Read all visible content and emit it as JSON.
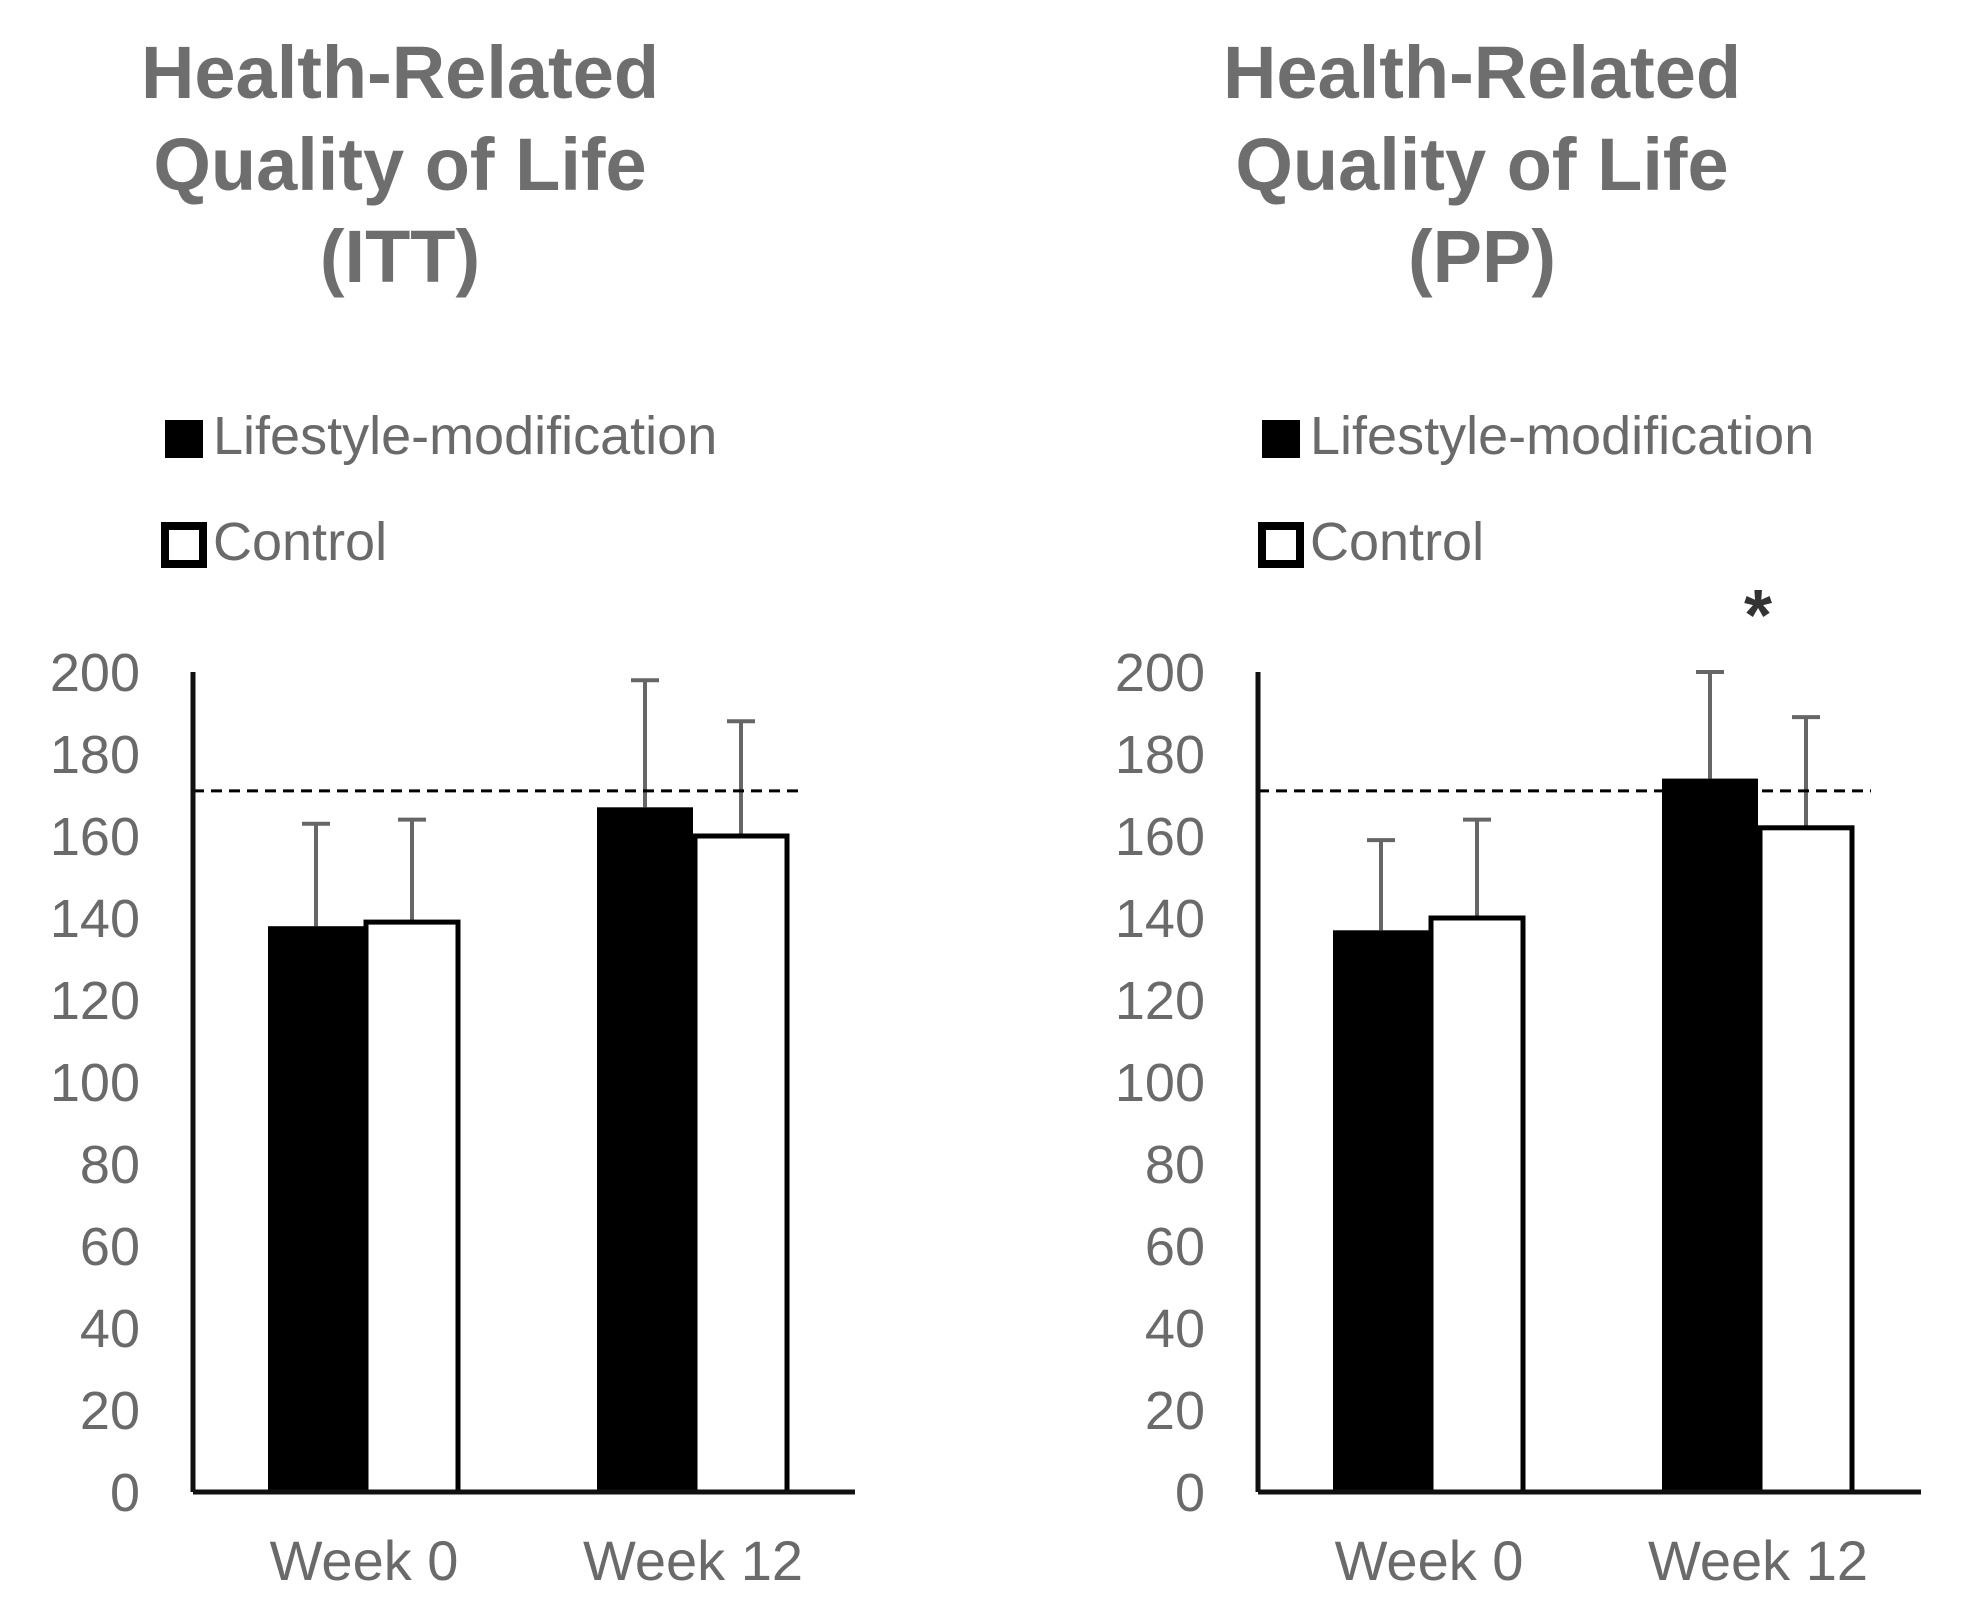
{
  "chart_data": [
    {
      "type": "bar",
      "title_lines": [
        "Health-Related",
        "Quality of Life",
        "(ITT)"
      ],
      "categories": [
        "Week 0",
        "Week 12"
      ],
      "series": [
        {
          "name": "Lifestyle-modification",
          "values": [
            138,
            167
          ],
          "errors": [
            25,
            31
          ]
        },
        {
          "name": "Control",
          "values": [
            139,
            160
          ],
          "errors": [
            25,
            28
          ]
        }
      ],
      "reference_line": 171,
      "ylim": [
        0,
        200
      ],
      "yticks": [
        "0",
        "20",
        "40",
        "60",
        "80",
        "100",
        "120",
        "140",
        "160",
        "180",
        "200"
      ],
      "annotation": ""
    },
    {
      "type": "bar",
      "title_lines": [
        "Health-Related",
        "Quality of Life",
        "(PP)"
      ],
      "categories": [
        "Week 0",
        "Week 12"
      ],
      "series": [
        {
          "name": "Lifestyle-modification",
          "values": [
            137,
            174
          ],
          "errors": [
            22,
            26
          ]
        },
        {
          "name": "Control",
          "values": [
            140,
            162
          ],
          "errors": [
            24,
            27
          ]
        }
      ],
      "reference_line": 171,
      "ylim": [
        0,
        200
      ],
      "yticks": [
        "0",
        "20",
        "40",
        "60",
        "80",
        "100",
        "120",
        "140",
        "160",
        "180",
        "200"
      ],
      "annotation": "*"
    }
  ],
  "colors": {
    "lifestyle_fill": "#000000",
    "control_fill": "#ffffff",
    "title": "#6e6e6e",
    "text": "#6a6a6a",
    "axis": "#111111",
    "errorbar": "#666666"
  }
}
